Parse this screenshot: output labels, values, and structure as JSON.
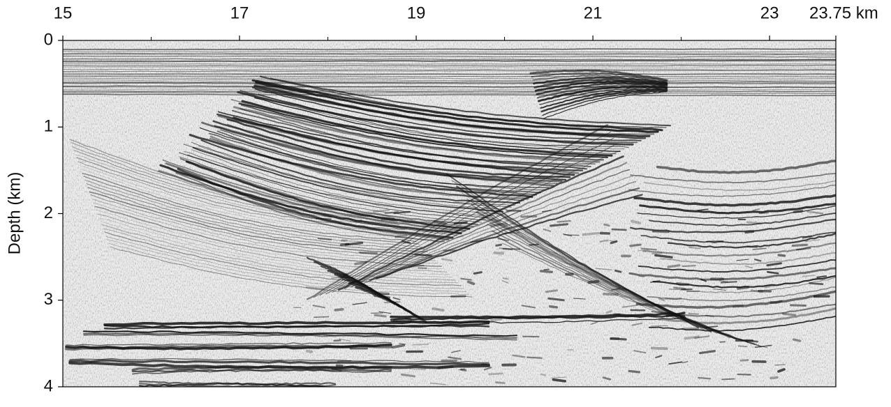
{
  "chart_data": {
    "type": "seismic-section",
    "y_label": "Depth (km)",
    "xlim": [
      15,
      23.75
    ],
    "xticks": [
      15,
      17,
      19,
      21,
      23,
      {
        "value": 23.75,
        "label": "23.75 km"
      }
    ],
    "xminorticks": [
      16,
      18,
      20,
      22
    ],
    "ylim": [
      0,
      4
    ],
    "yticks": [
      0,
      1,
      2,
      3,
      4
    ],
    "y_inverted": true
  }
}
